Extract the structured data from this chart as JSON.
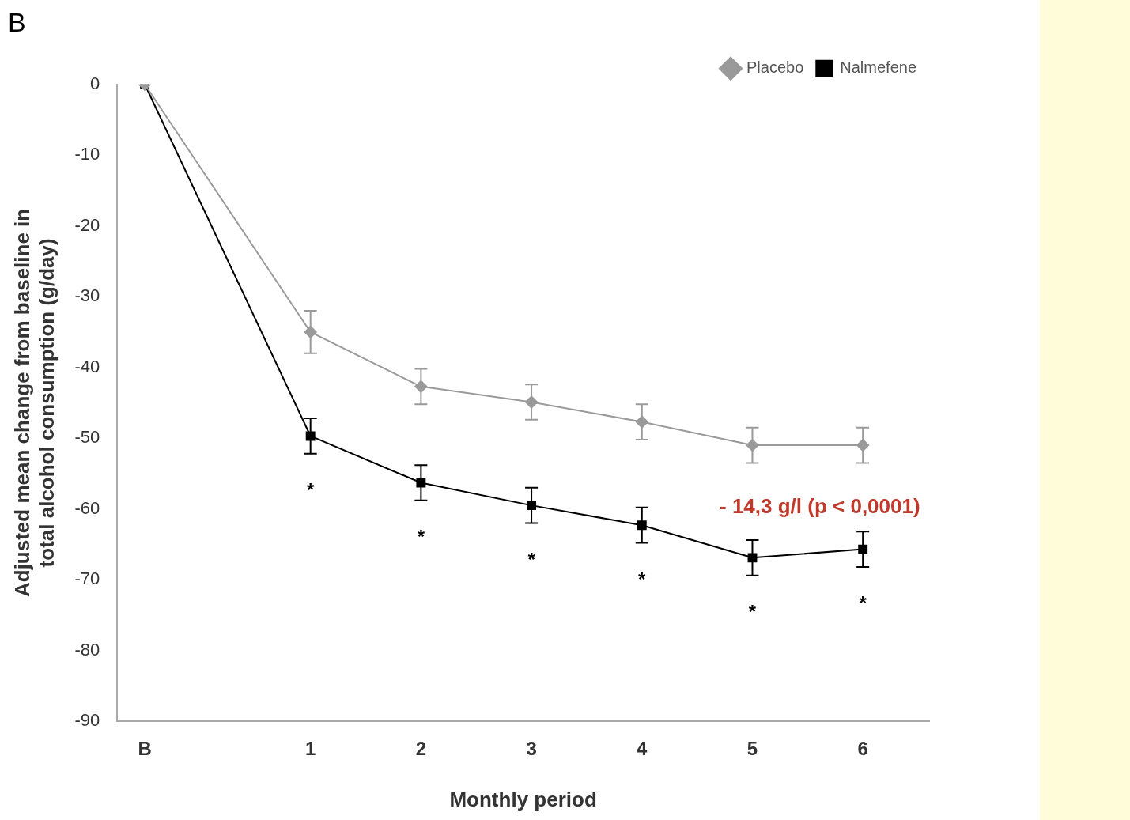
{
  "chart_data": {
    "type": "line",
    "title": "B",
    "xlabel": "Monthly period",
    "ylabel": "Adjusted mean change from baseline in\ntotal alcohol consumption (g/day)",
    "x": [
      -0.5,
      1,
      2,
      3,
      4,
      5,
      6
    ],
    "xlim": [
      -0.75,
      6.6
    ],
    "xticks": [
      {
        "value": -0.5,
        "label": "B"
      },
      1,
      2,
      3,
      4,
      5,
      6
    ],
    "ylim": [
      -90,
      0
    ],
    "yticks": [
      -90,
      -80,
      -70,
      -60,
      -50,
      -40,
      -30,
      -20,
      -10,
      0
    ],
    "series": [
      {
        "name": "Placebo",
        "color": "#9a9a9a",
        "marker": "diamond",
        "values": [
          0,
          -35,
          -42.7,
          -44.9,
          -47.7,
          -51,
          -51
        ],
        "errors": [
          null,
          3,
          2.5,
          2.5,
          2.5,
          2.5,
          2.5
        ]
      },
      {
        "name": "Nalmefene",
        "color": "#000000",
        "marker": "square",
        "values": [
          0,
          -49.7,
          -56.3,
          -59.5,
          -62.3,
          -66.9,
          -65.7
        ],
        "errors": [
          null,
          2.5,
          2.5,
          2.5,
          2.5,
          2.5,
          2.5
        ]
      }
    ],
    "annotations": [
      {
        "text": "*",
        "x": 1,
        "y": -49.7
      },
      {
        "text": "*",
        "x": 2,
        "y": -56.3
      },
      {
        "text": "*",
        "x": 3,
        "y": -59.5
      },
      {
        "text": "*",
        "x": 4,
        "y": -62.3
      },
      {
        "text": "*",
        "x": 5,
        "y": -66.9
      },
      {
        "text": "*",
        "x": 6,
        "y": -65.7
      },
      "- 14,3 g/l (p < 0,0001)"
    ],
    "grid": false,
    "legend": "top right",
    "line_style": "solid"
  }
}
